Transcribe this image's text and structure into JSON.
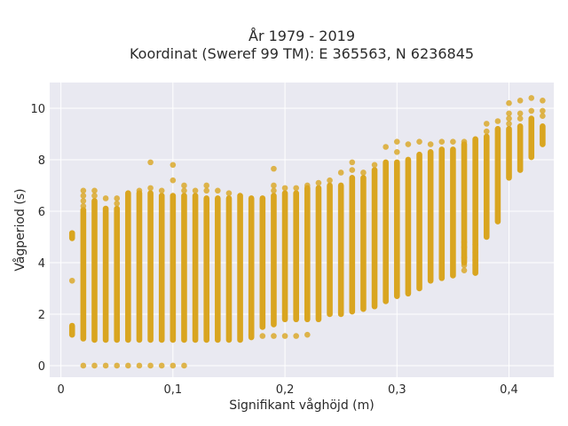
{
  "chart_data": {
    "type": "scatter",
    "title_line1": "År 1979 - 2019",
    "title_line2": "Koordinat (Sweref 99 TM): E 365563, N 6236845",
    "xlabel": "Signifikant våghöjd (m)",
    "ylabel": "Vågperiod (s)",
    "xlim": [
      -0.01,
      0.44
    ],
    "ylim": [
      -0.45,
      11.0
    ],
    "x_ticks": [
      0,
      0.1,
      0.2,
      0.3,
      0.4
    ],
    "x_tick_labels": [
      "0",
      "0,1",
      "0,2",
      "0,3",
      "0,4"
    ],
    "y_ticks": [
      0,
      2,
      4,
      6,
      8,
      10
    ],
    "y_tick_labels": [
      "0",
      "2",
      "4",
      "6",
      "8",
      "10"
    ],
    "grid": true,
    "plot_background": "#e9e9f1",
    "grid_color": "#ffffff",
    "marker_color": "#d9a520",
    "series": [
      {
        "columns": [
          {
            "x": 0.01,
            "ranges": [
              [
                1.2,
                1.55
              ],
              [
                4.95,
                5.15
              ]
            ],
            "points": [
              3.3
            ]
          },
          {
            "x": 0.02,
            "ranges": [
              [
                1.05,
                6.05
              ]
            ],
            "points": [
              0,
              6.2,
              6.4,
              6.6,
              6.8
            ]
          },
          {
            "x": 0.03,
            "ranges": [
              [
                1.0,
                6.4
              ]
            ],
            "points": [
              0,
              6.6,
              6.8
            ]
          },
          {
            "x": 0.04,
            "ranges": [
              [
                1.0,
                6.1
              ]
            ],
            "points": [
              0,
              6.5
            ]
          },
          {
            "x": 0.05,
            "ranges": [
              [
                1.0,
                6.1
              ]
            ],
            "points": [
              0,
              6.3,
              6.5
            ]
          },
          {
            "x": 0.06,
            "ranges": [
              [
                1.0,
                6.7
              ]
            ],
            "points": [
              0
            ]
          },
          {
            "x": 0.07,
            "ranges": [
              [
                1.0,
                6.7
              ]
            ],
            "points": [
              0,
              6.8
            ]
          },
          {
            "x": 0.08,
            "ranges": [
              [
                1.0,
                6.7
              ]
            ],
            "points": [
              0,
              6.9,
              7.9
            ]
          },
          {
            "x": 0.09,
            "ranges": [
              [
                1.0,
                6.6
              ]
            ],
            "points": [
              0,
              6.8
            ]
          },
          {
            "x": 0.1,
            "ranges": [
              [
                1.0,
                6.6
              ]
            ],
            "points": [
              0,
              7.2,
              7.8
            ]
          },
          {
            "x": 0.11,
            "ranges": [
              [
                1.0,
                6.6
              ]
            ],
            "points": [
              0,
              6.8,
              7.0
            ]
          },
          {
            "x": 0.12,
            "ranges": [
              [
                1.0,
                6.6
              ]
            ],
            "points": [
              6.8
            ]
          },
          {
            "x": 0.13,
            "ranges": [
              [
                1.0,
                6.5
              ]
            ],
            "points": [
              6.8,
              7.0
            ]
          },
          {
            "x": 0.14,
            "ranges": [
              [
                1.0,
                6.5
              ]
            ],
            "points": [
              6.8
            ]
          },
          {
            "x": 0.15,
            "ranges": [
              [
                1.0,
                6.5
              ]
            ],
            "points": [
              6.7
            ]
          },
          {
            "x": 0.16,
            "ranges": [
              [
                1.0,
                6.6
              ]
            ],
            "points": []
          },
          {
            "x": 0.17,
            "ranges": [
              [
                1.1,
                6.5
              ]
            ],
            "points": [
              1.2
            ]
          },
          {
            "x": 0.18,
            "ranges": [
              [
                1.5,
                6.5
              ]
            ],
            "points": [
              1.15
            ]
          },
          {
            "x": 0.19,
            "ranges": [
              [
                1.6,
                6.6
              ]
            ],
            "points": [
              1.15,
              6.8,
              7.0,
              7.65
            ]
          },
          {
            "x": 0.2,
            "ranges": [
              [
                1.8,
                6.7
              ]
            ],
            "points": [
              1.15,
              6.9
            ]
          },
          {
            "x": 0.21,
            "ranges": [
              [
                1.8,
                6.7
              ]
            ],
            "points": [
              1.15,
              6.9
            ]
          },
          {
            "x": 0.22,
            "ranges": [
              [
                1.8,
                6.9
              ]
            ],
            "points": [
              1.2,
              7.0
            ]
          },
          {
            "x": 0.23,
            "ranges": [
              [
                1.8,
                6.9
              ]
            ],
            "points": [
              7.1
            ]
          },
          {
            "x": 0.24,
            "ranges": [
              [
                2.0,
                7.0
              ]
            ],
            "points": [
              7.2
            ]
          },
          {
            "x": 0.25,
            "ranges": [
              [
                2.0,
                7.0
              ]
            ],
            "points": [
              7.5
            ]
          },
          {
            "x": 0.26,
            "ranges": [
              [
                2.1,
                7.3
              ]
            ],
            "points": [
              7.6,
              7.9
            ]
          },
          {
            "x": 0.27,
            "ranges": [
              [
                2.2,
                7.3
              ]
            ],
            "points": [
              7.5
            ]
          },
          {
            "x": 0.28,
            "ranges": [
              [
                2.3,
                7.6
              ]
            ],
            "points": [
              7.8
            ]
          },
          {
            "x": 0.29,
            "ranges": [
              [
                2.5,
                7.9
              ]
            ],
            "points": [
              8.5
            ]
          },
          {
            "x": 0.3,
            "ranges": [
              [
                2.7,
                7.9
              ]
            ],
            "points": [
              8.3,
              8.7
            ]
          },
          {
            "x": 0.31,
            "ranges": [
              [
                2.8,
                8.0
              ]
            ],
            "points": [
              8.6
            ]
          },
          {
            "x": 0.32,
            "ranges": [
              [
                3.0,
                8.2
              ]
            ],
            "points": [
              8.7
            ]
          },
          {
            "x": 0.33,
            "ranges": [
              [
                3.3,
                8.3
              ]
            ],
            "points": [
              8.6
            ]
          },
          {
            "x": 0.34,
            "ranges": [
              [
                3.4,
                8.4
              ]
            ],
            "points": [
              8.7
            ]
          },
          {
            "x": 0.35,
            "ranges": [
              [
                3.5,
                8.4
              ]
            ],
            "points": [
              8.7
            ]
          },
          {
            "x": 0.36,
            "ranges": [
              [
                4.0,
                8.6
              ]
            ],
            "points": [
              3.7,
              3.9,
              4.2,
              4.6,
              4.8,
              8.7
            ]
          },
          {
            "x": 0.37,
            "ranges": [
              [
                3.6,
                8.8
              ]
            ],
            "points": [
              3.9,
              4.1,
              4.4,
              4.7
            ]
          },
          {
            "x": 0.38,
            "ranges": [
              [
                5.0,
                8.9
              ]
            ],
            "points": [
              9.1,
              9.4
            ]
          },
          {
            "x": 0.39,
            "ranges": [
              [
                5.6,
                9.2
              ]
            ],
            "points": [
              9.5
            ]
          },
          {
            "x": 0.4,
            "ranges": [
              [
                7.3,
                9.2
              ]
            ],
            "points": [
              9.4,
              9.6,
              9.8,
              10.2
            ]
          },
          {
            "x": 0.41,
            "ranges": [
              [
                7.6,
                9.3
              ]
            ],
            "points": [
              9.6,
              9.8,
              10.3
            ]
          },
          {
            "x": 0.42,
            "ranges": [
              [
                8.1,
                9.6
              ]
            ],
            "points": [
              9.9,
              10.4
            ]
          },
          {
            "x": 0.43,
            "ranges": [
              [
                8.6,
                9.3
              ]
            ],
            "points": [
              9.7,
              9.9,
              10.3
            ]
          }
        ]
      }
    ]
  }
}
